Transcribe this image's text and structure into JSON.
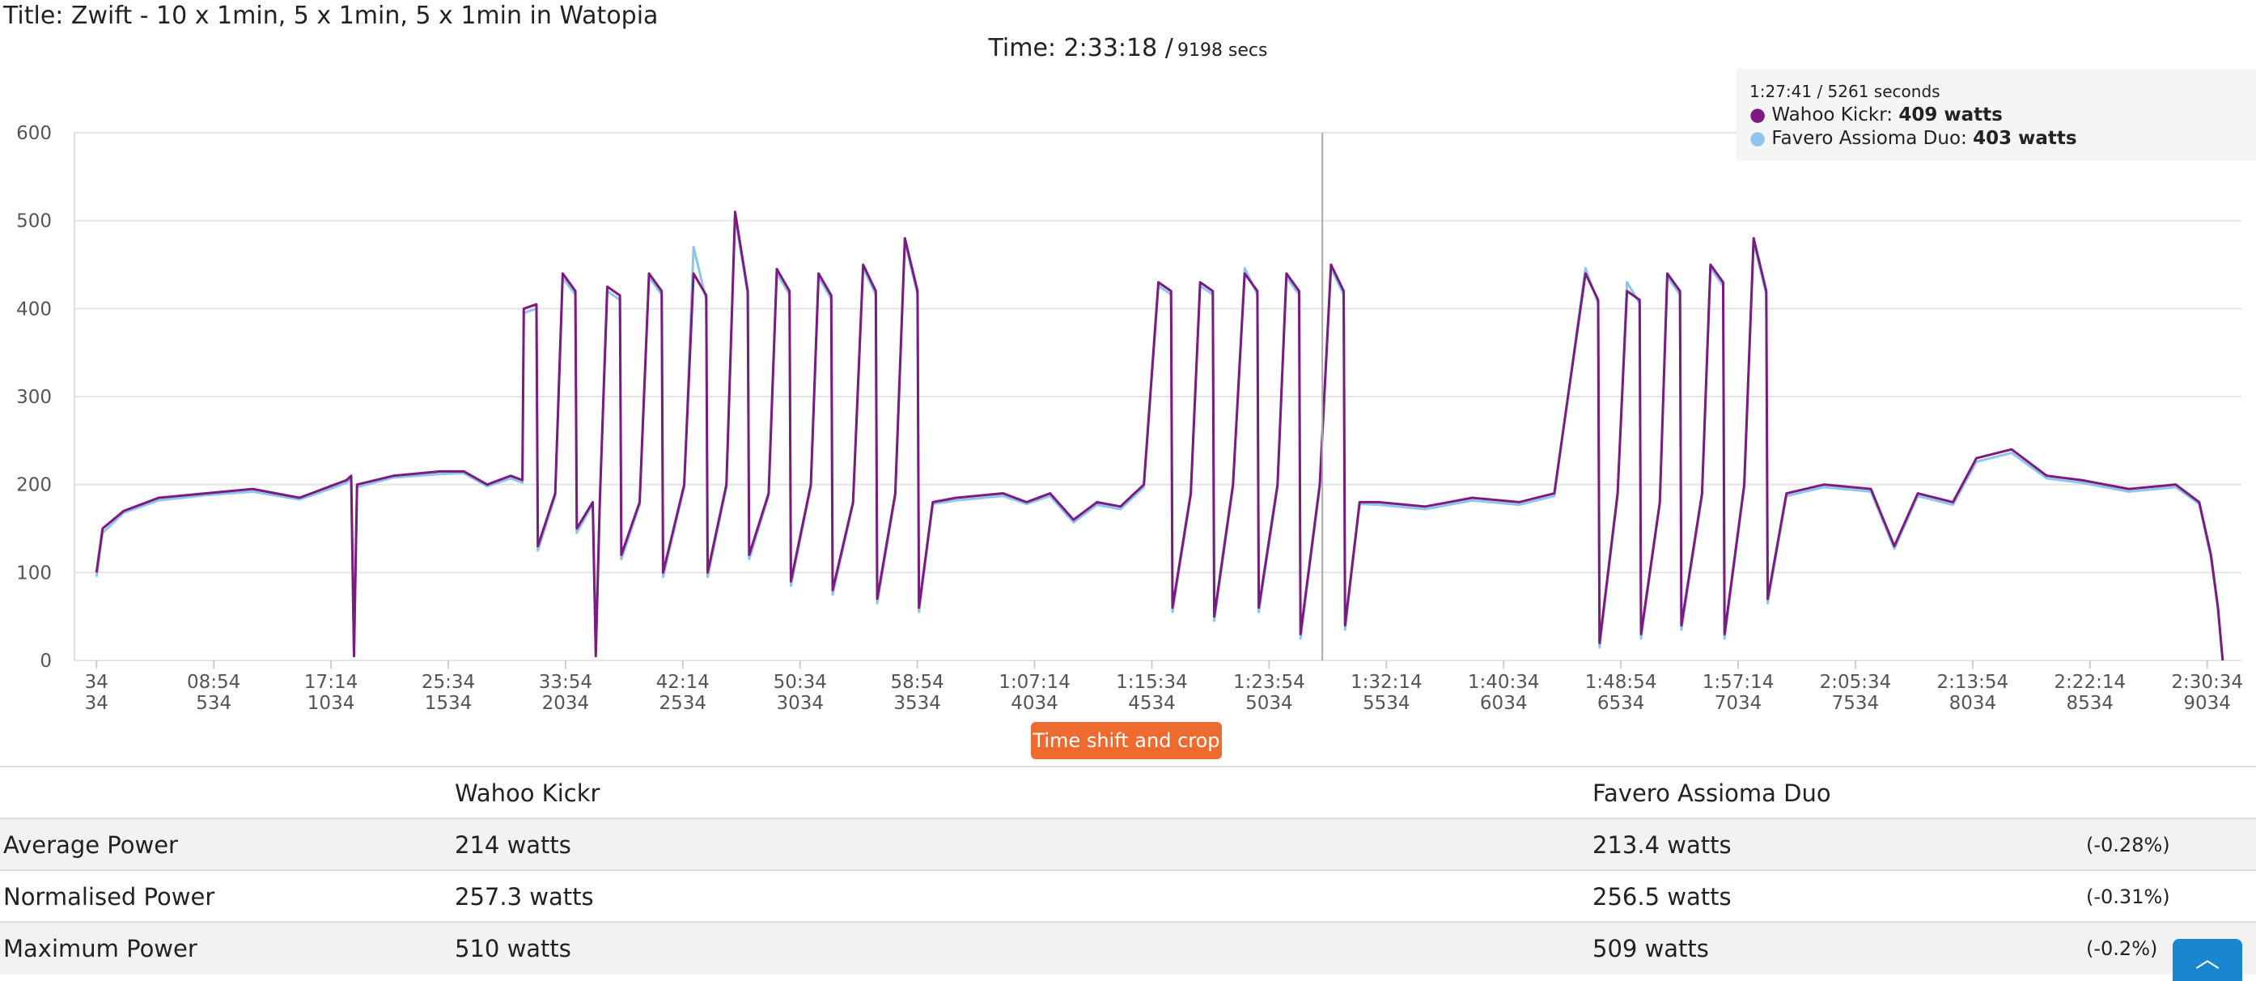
{
  "header": {
    "title": "Title: Zwift - 10 x 1min, 5 x 1min, 5 x 1min in Watopia",
    "time": "Time: 2:33:18 /",
    "secs": "9198 secs"
  },
  "chart_data": {
    "type": "line",
    "x": [
      34,
      60,
      150,
      300,
      500,
      700,
      900,
      1050,
      1100,
      1120,
      1132,
      1145,
      1300,
      1500,
      1600,
      1700,
      1800,
      1850,
      1856,
      1910,
      1916,
      1990,
      2022,
      2076,
      2082,
      2150,
      2163,
      2180,
      2212,
      2266,
      2272,
      2350,
      2390,
      2444,
      2450,
      2540,
      2580,
      2634,
      2640,
      2720,
      2757,
      2811,
      2817,
      2900,
      2935,
      2989,
      2995,
      3080,
      3113,
      3167,
      3173,
      3260,
      3303,
      3357,
      3363,
      3440,
      3481,
      3535,
      3541,
      3600,
      3700,
      3900,
      4000,
      4100,
      4200,
      4300,
      4400,
      4500,
      4562,
      4616,
      4622,
      4700,
      4740,
      4794,
      4800,
      4880,
      4930,
      4984,
      4990,
      5070,
      5108,
      5162,
      5168,
      5250,
      5298,
      5352,
      5358,
      5420,
      5500,
      5700,
      5900,
      6100,
      6250,
      6383,
      6437,
      6443,
      6520,
      6560,
      6614,
      6620,
      6700,
      6732,
      6786,
      6792,
      6880,
      6916,
      6970,
      6976,
      7060,
      7100,
      7154,
      7160,
      7240,
      7400,
      7600,
      7700,
      7800,
      7950,
      8050,
      8200,
      8350,
      8500,
      8700,
      8900,
      9000,
      9050,
      9080,
      9100
    ],
    "series": [
      {
        "name": "Favero Assioma Duo",
        "color": "#8ec5ea",
        "values": [
          95,
          145,
          168,
          182,
          188,
          192,
          183,
          197,
          202,
          207,
          10,
          197,
          208,
          212,
          213,
          198,
          207,
          202,
          395,
          400,
          125,
          187,
          435,
          416,
          145,
          178,
          10,
          177,
          420,
          410,
          115,
          177,
          436,
          416,
          95,
          197,
          470,
          410,
          95,
          197,
          505,
          416,
          115,
          187,
          440,
          416,
          85,
          197,
          436,
          411,
          75,
          178,
          446,
          416,
          65,
          187,
          476,
          416,
          55,
          178,
          182,
          187,
          178,
          187,
          157,
          177,
          172,
          197,
          426,
          416,
          55,
          187,
          426,
          416,
          45,
          197,
          446,
          416,
          55,
          197,
          436,
          416,
          25,
          197,
          446,
          416,
          35,
          178,
          177,
          172,
          182,
          177,
          187,
          446,
          406,
          15,
          187,
          430,
          406,
          25,
          178,
          436,
          416,
          35,
          187,
          446,
          426,
          25,
          197,
          476,
          416,
          65,
          187,
          197,
          192,
          127,
          187,
          177,
          226,
          236,
          207,
          202,
          192,
          197,
          178,
          117,
          58,
          0
        ]
      },
      {
        "name": "Wahoo Kickr",
        "color": "#7b1a7f",
        "values": [
          100,
          150,
          170,
          185,
          190,
          195,
          185,
          200,
          205,
          210,
          5,
          200,
          210,
          215,
          215,
          200,
          210,
          205,
          400,
          405,
          130,
          190,
          440,
          420,
          150,
          180,
          5,
          180,
          425,
          415,
          120,
          180,
          440,
          420,
          100,
          200,
          440,
          415,
          100,
          200,
          510,
          420,
          120,
          190,
          445,
          420,
          90,
          200,
          440,
          415,
          80,
          180,
          450,
          420,
          70,
          190,
          480,
          420,
          60,
          180,
          185,
          190,
          180,
          190,
          160,
          180,
          175,
          200,
          430,
          420,
          60,
          190,
          430,
          420,
          50,
          200,
          440,
          420,
          60,
          200,
          440,
          420,
          30,
          200,
          450,
          420,
          40,
          180,
          180,
          175,
          185,
          180,
          190,
          440,
          410,
          20,
          190,
          420,
          410,
          30,
          180,
          440,
          420,
          40,
          190,
          450,
          430,
          30,
          200,
          480,
          420,
          70,
          190,
          200,
          195,
          130,
          190,
          180,
          230,
          240,
          210,
          205,
          195,
          200,
          180,
          120,
          60,
          0
        ]
      }
    ],
    "xlim": [
      -60,
      9180
    ],
    "ylim": [
      0,
      600
    ],
    "yticks": [
      0,
      100,
      200,
      300,
      400,
      500,
      600
    ],
    "xticks": [
      {
        "value": 34,
        "label": "34"
      },
      {
        "value": 534,
        "label": "08:54"
      },
      {
        "value": 1034,
        "label": "17:14"
      },
      {
        "value": 1534,
        "label": "25:34"
      },
      {
        "value": 2034,
        "label": "33:54"
      },
      {
        "value": 2534,
        "label": "42:14"
      },
      {
        "value": 3034,
        "label": "50:34"
      },
      {
        "value": 3534,
        "label": "58:54"
      },
      {
        "value": 4034,
        "label": "1:07:14"
      },
      {
        "value": 4534,
        "label": "1:15:34"
      },
      {
        "value": 5034,
        "label": "1:23:54"
      },
      {
        "value": 5534,
        "label": "1:32:14"
      },
      {
        "value": 6034,
        "label": "1:40:34"
      },
      {
        "value": 6534,
        "label": "1:48:54"
      },
      {
        "value": 7034,
        "label": "1:57:14"
      },
      {
        "value": 7534,
        "label": "2:05:34"
      },
      {
        "value": 8034,
        "label": "2:13:54"
      },
      {
        "value": 8534,
        "label": "2:22:14"
      },
      {
        "value": 9034,
        "label": "2:30:34"
      }
    ],
    "grid": true,
    "cursor": {
      "x": 5261,
      "text": "1:27:41 / 5261 seconds",
      "entries": [
        "409 watts",
        "403 watts"
      ]
    }
  },
  "button": "Time shift and crop",
  "table": {
    "columns": [
      "Wahoo Kickr",
      "Favero Assioma Duo"
    ],
    "rows": [
      [
        "Average Power",
        "214 watts",
        "213.4 watts",
        "(-0.28%)"
      ],
      [
        "Normalised Power",
        "257.3 watts",
        "256.5 watts",
        "(-0.31%)"
      ],
      [
        "Maximum Power",
        "510 watts",
        "509 watts",
        "(-0.2%)"
      ]
    ]
  }
}
